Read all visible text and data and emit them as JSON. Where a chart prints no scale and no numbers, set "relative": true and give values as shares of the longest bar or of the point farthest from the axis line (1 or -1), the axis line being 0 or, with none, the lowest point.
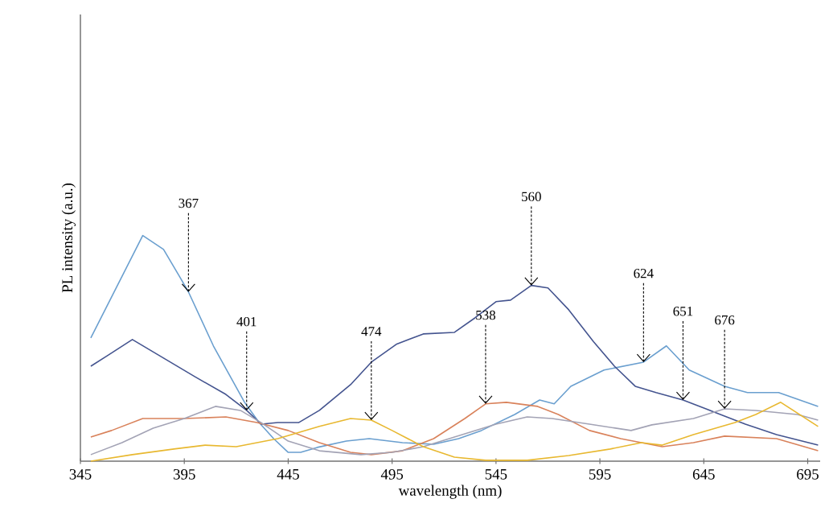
{
  "chart_data": {
    "type": "line",
    "xlabel": "wavelength (nm)",
    "ylabel": "PL intensity  (a.u.)",
    "relative": true,
    "marker": "none",
    "line_style": "solid",
    "xlim": [
      345,
      701
    ],
    "xticks": [
      345,
      395,
      445,
      495,
      545,
      595,
      645,
      695
    ],
    "series": [
      {
        "color": "#6a9fcf",
        "x": [
          350,
          375,
          385,
          393,
          397,
          409,
          424,
          431,
          438,
          445,
          451,
          459,
          473,
          484,
          500,
          515,
          527,
          538,
          554,
          566,
          573,
          581,
          597,
          616,
          627,
          638,
          655,
          666,
          681,
          700
        ],
        "values": [
          0.546,
          1.0,
          0.939,
          0.814,
          0.75,
          0.511,
          0.261,
          0.171,
          0.1,
          0.039,
          0.039,
          0.061,
          0.089,
          0.1,
          0.082,
          0.075,
          0.1,
          0.136,
          0.207,
          0.271,
          0.254,
          0.332,
          0.404,
          0.439,
          0.511,
          0.404,
          0.332,
          0.304,
          0.304,
          0.243
        ]
      },
      {
        "color": "#44548f",
        "x": [
          350,
          358,
          370,
          385,
          400,
          415,
          425,
          432,
          440,
          450,
          460,
          475,
          485,
          497,
          510,
          525,
          535,
          545,
          552,
          562,
          570,
          580,
          592,
          602,
          612,
          622,
          635,
          650,
          665,
          680,
          700
        ],
        "values": [
          0.421,
          0.468,
          0.539,
          0.457,
          0.375,
          0.296,
          0.225,
          0.164,
          0.171,
          0.171,
          0.225,
          0.339,
          0.439,
          0.518,
          0.564,
          0.571,
          0.636,
          0.707,
          0.714,
          0.779,
          0.768,
          0.671,
          0.529,
          0.421,
          0.332,
          0.304,
          0.271,
          0.218,
          0.164,
          0.118,
          0.071
        ]
      },
      {
        "color": "#d9825b",
        "x": [
          350,
          360,
          375,
          395,
          415,
          430,
          445,
          460,
          475,
          485,
          500,
          515,
          530,
          540,
          550,
          565,
          575,
          590,
          605,
          625,
          640,
          655,
          680,
          700
        ],
        "values": [
          0.107,
          0.136,
          0.189,
          0.189,
          0.196,
          0.171,
          0.136,
          0.082,
          0.039,
          0.029,
          0.046,
          0.1,
          0.189,
          0.254,
          0.261,
          0.243,
          0.207,
          0.136,
          0.1,
          0.064,
          0.082,
          0.111,
          0.1,
          0.046
        ]
      },
      {
        "color": "#a3a3b5",
        "x": [
          350,
          365,
          380,
          395,
          410,
          422,
          432,
          445,
          460,
          480,
          495,
          510,
          525,
          545,
          560,
          572,
          590,
          610,
          620,
          640,
          655,
          670,
          690,
          700
        ],
        "values": [
          0.029,
          0.082,
          0.146,
          0.189,
          0.243,
          0.225,
          0.171,
          0.089,
          0.046,
          0.029,
          0.039,
          0.064,
          0.107,
          0.164,
          0.196,
          0.189,
          0.164,
          0.136,
          0.161,
          0.189,
          0.232,
          0.225,
          0.207,
          0.182
        ]
      },
      {
        "color": "#e8b830",
        "x": [
          350,
          370,
          390,
          405,
          420,
          440,
          460,
          475,
          485,
          495,
          510,
          525,
          540,
          560,
          580,
          600,
          615,
          625,
          640,
          660,
          670,
          682,
          700
        ],
        "values": [
          0.0,
          0.029,
          0.054,
          0.071,
          0.064,
          0.1,
          0.154,
          0.189,
          0.182,
          0.136,
          0.064,
          0.018,
          0.004,
          0.004,
          0.025,
          0.054,
          0.082,
          0.071,
          0.118,
          0.171,
          0.207,
          0.261,
          0.154
        ]
      }
    ],
    "annotations": [
      {
        "text": "367",
        "x": 397,
        "y": 0.75
      },
      {
        "text": "401",
        "x": 425,
        "y": 0.225
      },
      {
        "text": "474",
        "x": 485,
        "y": 0.182
      },
      {
        "text": "538",
        "x": 540,
        "y": 0.254
      },
      {
        "text": "560",
        "x": 562,
        "y": 0.779
      },
      {
        "text": "624",
        "x": 616,
        "y": 0.439
      },
      {
        "text": "651",
        "x": 635,
        "y": 0.271
      },
      {
        "text": "676",
        "x": 655,
        "y": 0.232
      }
    ]
  }
}
